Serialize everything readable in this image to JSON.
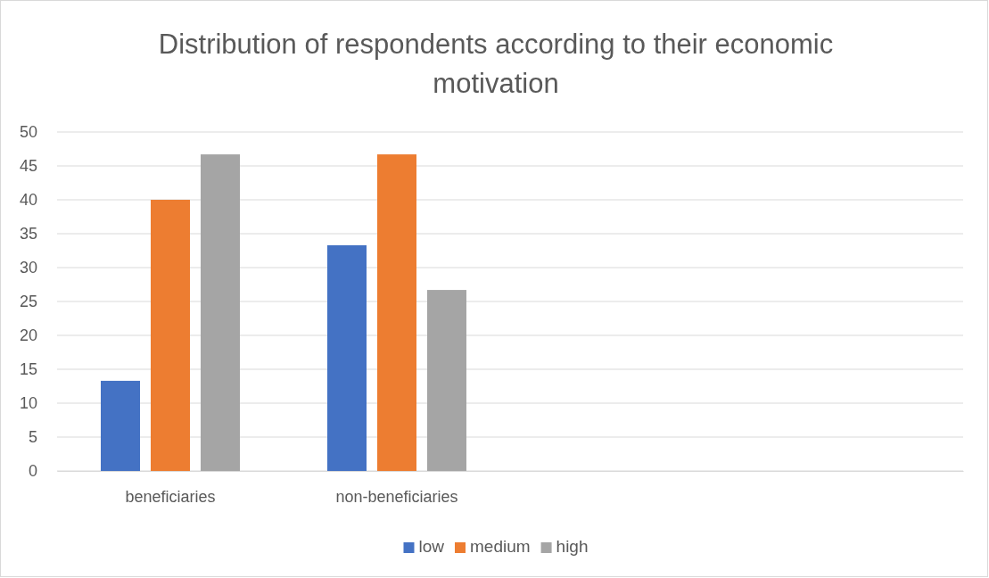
{
  "chart_data": {
    "type": "bar",
    "title": "Distribution of respondents according to their economic motivation",
    "categories": [
      "beneficiaries",
      "non-beneficiaries",
      null,
      null
    ],
    "series": [
      {
        "name": "low",
        "color": "#4472c4",
        "values": [
          13.3,
          33.3,
          null,
          null
        ]
      },
      {
        "name": "medium",
        "color": "#ed7d31",
        "values": [
          40,
          46.7,
          null,
          null
        ]
      },
      {
        "name": "high",
        "color": "#a5a5a5",
        "values": [
          46.7,
          26.7,
          null,
          null
        ]
      }
    ],
    "ylim": [
      0,
      50
    ],
    "yticks": [
      0,
      5,
      10,
      15,
      20,
      25,
      30,
      35,
      40,
      45,
      50
    ],
    "grid": "y",
    "legend": "bottom"
  }
}
